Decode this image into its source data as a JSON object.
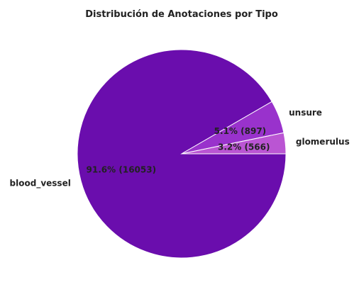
{
  "chart_data": {
    "type": "pie",
    "title": "Distribución de Anotaciones por Tipo",
    "slices": [
      {
        "label": "blood_vessel",
        "value": 16053,
        "pct_text": "91.6% (16053)",
        "color": "#6a0dad"
      },
      {
        "label": "unsure",
        "value": 897,
        "pct_text": "5.1% (897)",
        "color": "#9932cc"
      },
      {
        "label": "glomerulus",
        "value": 566,
        "pct_text": "3.2% (566)",
        "color": "#ba55d3"
      }
    ],
    "start_angle": 0,
    "direction": "clockwise",
    "edge_color": "#ffffff"
  }
}
